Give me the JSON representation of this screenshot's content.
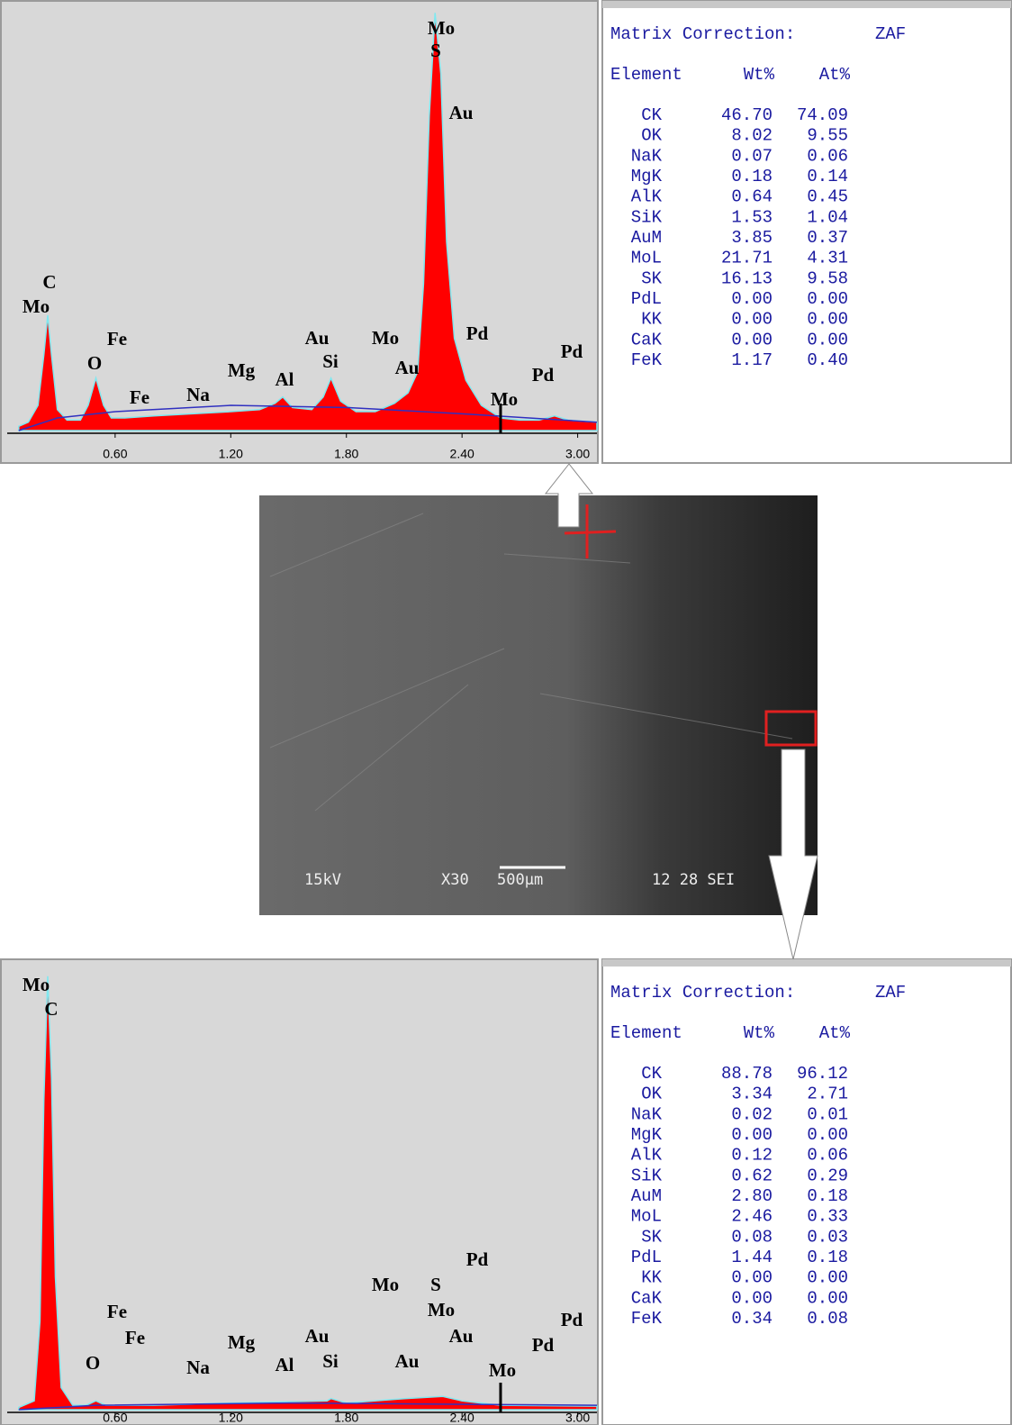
{
  "chart_data": [
    {
      "type": "area",
      "xlim": [
        0.04,
        3.1
      ],
      "ylim": [
        0,
        100
      ],
      "xticks": [
        {
          "value": 0.6,
          "label": "0.60"
        },
        {
          "value": 1.2,
          "label": "1.20"
        },
        {
          "value": 1.8,
          "label": "1.80"
        },
        {
          "value": 2.4,
          "label": "2.40"
        },
        {
          "value": 3.0,
          "label": "3.00"
        }
      ],
      "series": [
        {
          "color": "#ff0000",
          "x": [
            0.1,
            0.15,
            0.2,
            0.23,
            0.25,
            0.27,
            0.3,
            0.35,
            0.42,
            0.46,
            0.5,
            0.54,
            0.58,
            0.65,
            0.8,
            1.0,
            1.2,
            1.35,
            1.43,
            1.47,
            1.52,
            1.62,
            1.68,
            1.72,
            1.77,
            1.85,
            1.95,
            2.05,
            2.12,
            2.17,
            2.2,
            2.23,
            2.26,
            2.29,
            2.32,
            2.36,
            2.42,
            2.5,
            2.6,
            2.7,
            2.8,
            2.88,
            2.95,
            3.1
          ],
          "values": [
            1,
            2,
            6,
            18,
            27.5,
            18,
            5,
            2.5,
            2.5,
            6,
            12.5,
            6,
            3,
            3,
            3.5,
            4,
            4.5,
            5,
            6.5,
            8,
            5.5,
            5,
            8,
            12.5,
            7,
            4.5,
            4.5,
            6.5,
            9,
            14,
            35,
            75,
            99.5,
            85,
            45,
            22,
            12,
            6,
            3,
            2.5,
            2.5,
            3.5,
            2.5,
            2
          ]
        },
        {
          "color": "#3030c0",
          "x": [
            0.1,
            0.3,
            0.6,
            1.2,
            1.8,
            2.4,
            3.1
          ],
          "values": [
            0,
            3,
            4.5,
            6,
            5.5,
            4,
            2
          ]
        }
      ],
      "annotations": [
        "Mo",
        "S",
        "Au",
        "C",
        "Mo",
        "Fe",
        "O",
        "Fe",
        "Na",
        "Mg",
        "Al",
        "Au",
        "Si",
        "Mo",
        "Au",
        "Pd",
        "Pd",
        "Pd",
        "Mo"
      ]
    },
    {
      "type": "area",
      "xlim": [
        0.04,
        3.1
      ],
      "ylim": [
        0,
        100
      ],
      "xticks": [
        {
          "value": 0.6,
          "label": "0.60"
        },
        {
          "value": 1.2,
          "label": "1.20"
        },
        {
          "value": 1.8,
          "label": "1.80"
        },
        {
          "value": 2.4,
          "label": "2.40"
        },
        {
          "value": 3.0,
          "label": "3.00"
        }
      ],
      "series": [
        {
          "color": "#ff0000",
          "x": [
            0.1,
            0.18,
            0.21,
            0.23,
            0.25,
            0.27,
            0.29,
            0.32,
            0.38,
            0.45,
            0.5,
            0.55,
            0.8,
            1.2,
            1.7,
            1.72,
            1.8,
            2.1,
            2.3,
            2.4,
            2.6,
            3.1
          ],
          "values": [
            0.5,
            2,
            20,
            70,
            98,
            75,
            30,
            5,
            1,
            1,
            2,
            1,
            1,
            1.5,
            2,
            2.5,
            1.5,
            2.5,
            3,
            2,
            1,
            0.8
          ]
        },
        {
          "color": "#3030c0",
          "x": [
            0.1,
            0.5,
            1.5,
            3.1
          ],
          "values": [
            0,
            1,
            1.5,
            1
          ]
        }
      ],
      "annotations": [
        "Mo",
        "C",
        "Pd",
        "Mo",
        "S",
        "Mo",
        "Fe",
        "Fe",
        "Pd",
        "Au",
        "Au",
        "Mg",
        "Pd",
        "O",
        "Na",
        "Al",
        "Si",
        "Au",
        "Mo"
      ]
    }
  ],
  "tables": [
    {
      "title": "Matrix Correction:",
      "method": "ZAF",
      "header": [
        "Element",
        "Wt%",
        "At%"
      ],
      "rows": [
        [
          "CK",
          "46.70",
          "74.09"
        ],
        [
          "OK",
          "8.02",
          "9.55"
        ],
        [
          "NaK",
          "0.07",
          "0.06"
        ],
        [
          "MgK",
          "0.18",
          "0.14"
        ],
        [
          "AlK",
          "0.64",
          "0.45"
        ],
        [
          "SiK",
          "1.53",
          "1.04"
        ],
        [
          "AuM",
          "3.85",
          "0.37"
        ],
        [
          "MoL",
          "21.71",
          "4.31"
        ],
        [
          "SK",
          "16.13",
          "9.58"
        ],
        [
          "PdL",
          "0.00",
          "0.00"
        ],
        [
          "KK",
          "0.00",
          "0.00"
        ],
        [
          "CaK",
          "0.00",
          "0.00"
        ],
        [
          "FeK",
          "1.17",
          "0.40"
        ]
      ]
    },
    {
      "title": "Matrix Correction:",
      "method": "ZAF",
      "header": [
        "Element",
        "Wt%",
        "At%"
      ],
      "rows": [
        [
          "CK",
          "88.78",
          "96.12"
        ],
        [
          "OK",
          "3.34",
          "2.71"
        ],
        [
          "NaK",
          "0.02",
          "0.01"
        ],
        [
          "MgK",
          "0.00",
          "0.00"
        ],
        [
          "AlK",
          "0.12",
          "0.06"
        ],
        [
          "SiK",
          "0.62",
          "0.29"
        ],
        [
          "AuM",
          "2.80",
          "0.18"
        ],
        [
          "MoL",
          "2.46",
          "0.33"
        ],
        [
          "SK",
          "0.08",
          "0.03"
        ],
        [
          "PdL",
          "1.44",
          "0.18"
        ],
        [
          "KK",
          "0.00",
          "0.00"
        ],
        [
          "CaK",
          "0.00",
          "0.00"
        ],
        [
          "FeK",
          "0.34",
          "0.08"
        ]
      ]
    }
  ],
  "sem_image": {
    "voltage": "15kV",
    "magnification": "X30",
    "scale": "500µm",
    "info": "12 28 SEI"
  }
}
